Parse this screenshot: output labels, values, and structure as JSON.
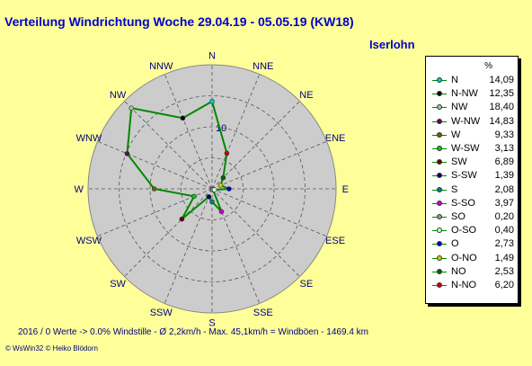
{
  "title": "Verteilung Windrichtung   Woche 29.04.19 - 05.05.19 (KW18)",
  "station": "Iserlohn",
  "footer": "2016 / 0 Werte  -> 0.0% Windstille   -   Ø 2,2km/h  -  Max. 45,1km/h = Windböen   -   1469.4 km",
  "copyright": "© WsWin32   © Heiko Blödorn",
  "chart_data": {
    "type": "radar",
    "title": "Verteilung Windrichtung   Woche 29.04.19 - 05.05.19 (KW18)",
    "unit": "%",
    "radial_max": 20,
    "ring_step": 5,
    "ring_label": "10",
    "ring_label_value": 10,
    "grid": true,
    "legend_position": "right",
    "line_color": "#008800",
    "directions": [
      "N",
      "NNE",
      "NE",
      "ENE",
      "E",
      "ESE",
      "SE",
      "SSE",
      "S",
      "SSW",
      "SW",
      "WSW",
      "W",
      "WNW",
      "NW",
      "NNW"
    ],
    "series": [
      {
        "label": "N",
        "value": "14,09",
        "angle": 0,
        "r": 14.09,
        "color": "#00cccc"
      },
      {
        "label": "N-NW",
        "value": "12,35",
        "angle": 337.5,
        "r": 12.35,
        "color": "#000000"
      },
      {
        "label": "NW",
        "value": "18,40",
        "angle": 315,
        "r": 18.4,
        "color": "#99cc99"
      },
      {
        "label": "W-NW",
        "value": "14,83",
        "angle": 292.5,
        "r": 14.83,
        "color": "#660066"
      },
      {
        "label": "W",
        "value": "9,33",
        "angle": 270,
        "r": 9.33,
        "color": "#666600"
      },
      {
        "label": "W-SW",
        "value": "3,13",
        "angle": 247.5,
        "r": 3.13,
        "color": "#00cc00"
      },
      {
        "label": "SW",
        "value": "6,89",
        "angle": 225,
        "r": 6.89,
        "color": "#660000"
      },
      {
        "label": "S-SW",
        "value": "1,39",
        "angle": 202.5,
        "r": 1.39,
        "color": "#000066"
      },
      {
        "label": "S",
        "value": "2,08",
        "angle": 180,
        "r": 2.08,
        "color": "#008080"
      },
      {
        "label": "S-SO",
        "value": "3,97",
        "angle": 157.5,
        "r": 3.97,
        "color": "#cc00cc"
      },
      {
        "label": "SO",
        "value": "0,20",
        "angle": 135,
        "r": 0.2,
        "color": "#999999"
      },
      {
        "label": "O-SO",
        "value": "0,40",
        "angle": 112.5,
        "r": 0.4,
        "color": "#ccffcc"
      },
      {
        "label": "O",
        "value": "2,73",
        "angle": 90,
        "r": 2.73,
        "color": "#0000cc"
      },
      {
        "label": "O-NO",
        "value": "1,49",
        "angle": 67.5,
        "r": 1.49,
        "color": "#cccc00"
      },
      {
        "label": "NO",
        "value": "2,53",
        "angle": 45,
        "r": 2.53,
        "color": "#006600"
      },
      {
        "label": "N-NO",
        "value": "6,20",
        "angle": 22.5,
        "r": 6.2,
        "color": "#cc0000"
      }
    ]
  }
}
